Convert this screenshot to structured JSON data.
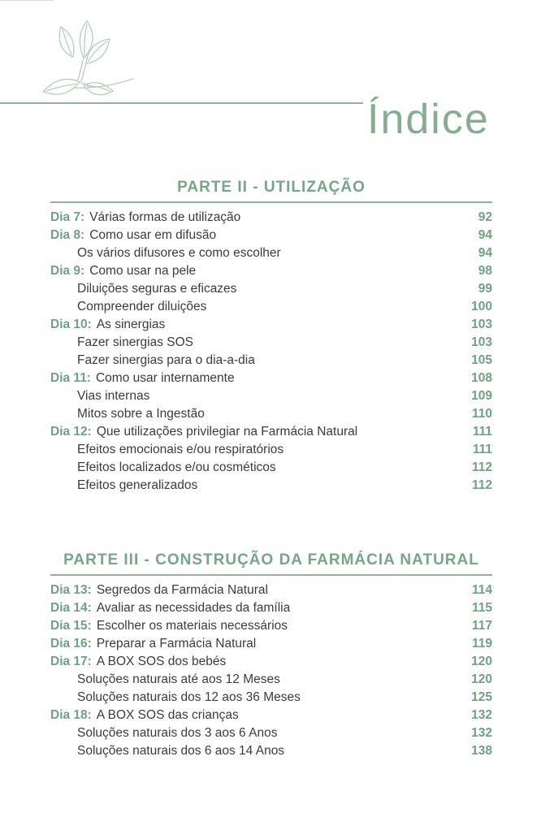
{
  "page": {
    "title": "Índice"
  },
  "logo": {
    "name": "botanical-leaves-sketch"
  },
  "colors": {
    "accent_green": "#6fa183",
    "heading_green": "#75a687",
    "light_green_rule": "#8fb39c",
    "title_green": "#85ad93",
    "leaf_stroke": "#b5cebf",
    "body_text": "#3b3b3b",
    "background": "#ffffff"
  },
  "sections": [
    {
      "heading": "PARTE II - UTILIZAÇÃO",
      "entries": [
        {
          "label": "Dia 7:",
          "title": "Várias formas de utilização",
          "page": "92",
          "indent": false
        },
        {
          "label": "Dia 8:",
          "title": "Como usar em difusão",
          "page": "94",
          "indent": false
        },
        {
          "label": "",
          "title": "Os vários difusores e como escolher",
          "page": "94",
          "indent": true
        },
        {
          "label": "Dia 9:",
          "title": "Como usar na pele",
          "page": "98",
          "indent": false
        },
        {
          "label": "",
          "title": "Diluições seguras e eficazes",
          "page": "99",
          "indent": true
        },
        {
          "label": "",
          "title": "Compreender diluições",
          "page": "100",
          "indent": true
        },
        {
          "label": "Dia 10:",
          "title": "As sinergias",
          "page": "103",
          "indent": false
        },
        {
          "label": "",
          "title": "Fazer sinergias SOS",
          "page": "103",
          "indent": true
        },
        {
          "label": "",
          "title": "Fazer sinergias para o dia-a-dia",
          "page": "105",
          "indent": true
        },
        {
          "label": "Dia 11:",
          "title": "Como usar internamente",
          "page": "108",
          "indent": false
        },
        {
          "label": "",
          "title": "Vias internas",
          "page": "109",
          "indent": true
        },
        {
          "label": "",
          "title": "Mitos sobre a Ingestão",
          "page": "110",
          "indent": true
        },
        {
          "label": "Dia 12:",
          "title": "Que utilizações privilegiar na Farmácia Natural",
          "page": "111",
          "indent": false
        },
        {
          "label": "",
          "title": "Efeitos emocionais e/ou respiratórios",
          "page": "111",
          "indent": true
        },
        {
          "label": "",
          "title": "Efeitos localizados e/ou cosméticos",
          "page": "112",
          "indent": true
        },
        {
          "label": "",
          "title": "Efeitos generalizados",
          "page": "112",
          "indent": true
        }
      ]
    },
    {
      "heading": "PARTE III - CONSTRUÇÃO DA FARMÁCIA NATURAL",
      "entries": [
        {
          "label": "Dia 13:",
          "title": "Segredos da Farmácia Natural",
          "page": "114",
          "indent": false
        },
        {
          "label": "Dia 14:",
          "title": "Avaliar as necessidades da família",
          "page": "115",
          "indent": false
        },
        {
          "label": "Dia 15:",
          "title": "Escolher os materiais necessários",
          "page": "117",
          "indent": false
        },
        {
          "label": "Dia 16:",
          "title": "Preparar a Farmácia Natural",
          "page": "119",
          "indent": false
        },
        {
          "label": "Dia 17:",
          "title": "A BOX SOS dos bebés",
          "page": "120",
          "indent": false
        },
        {
          "label": "",
          "title": "Soluções naturais até aos 12 Meses",
          "page": "120",
          "indent": true
        },
        {
          "label": "",
          "title": "Soluções naturais dos 12 aos 36 Meses",
          "page": "125",
          "indent": true
        },
        {
          "label": "Dia 18:",
          "title": "A BOX SOS das crianças",
          "page": "132",
          "indent": false
        },
        {
          "label": "",
          "title": "Soluções naturais dos 3 aos 6 Anos",
          "page": "132",
          "indent": true
        },
        {
          "label": "",
          "title": "Soluções naturais dos 6 aos 14 Anos",
          "page": "138",
          "indent": true
        }
      ]
    }
  ]
}
